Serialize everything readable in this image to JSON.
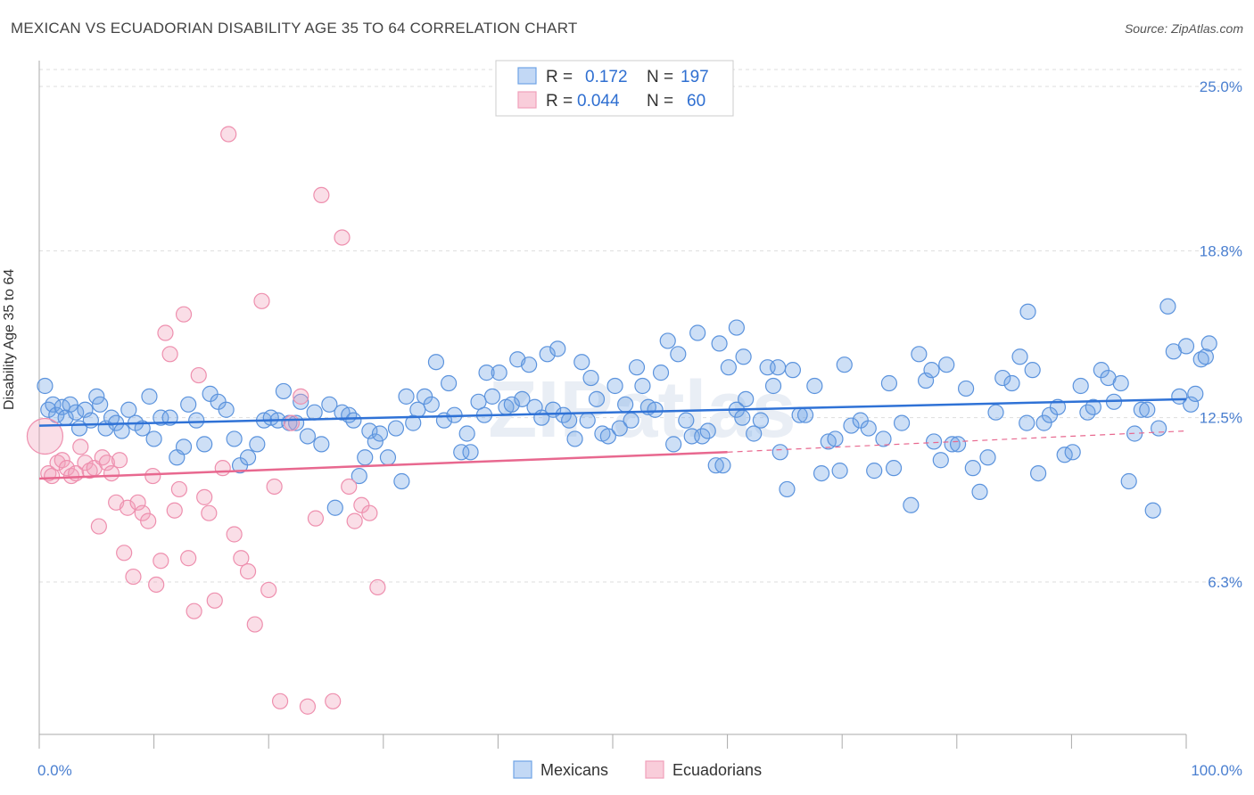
{
  "header": {
    "title": "MEXICAN VS ECUADORIAN DISABILITY AGE 35 TO 64 CORRELATION CHART",
    "source": "Source: ZipAtlas.com"
  },
  "watermark": "ZIPatlas",
  "colors": {
    "mexicans": "#6fa3e6",
    "ecuadorians": "#f1a0bb",
    "blue_line": "#2f72d6",
    "pink_line": "#e8688f",
    "axis_text": "#4a7fd0"
  },
  "legend": {
    "rows": [
      {
        "r_label": "R =",
        "r_value": "0.172",
        "n_label": "N =",
        "n_value": "197"
      },
      {
        "r_label": "R =",
        "r_value": "0.044",
        "n_label": "N =",
        "n_value": "60"
      }
    ]
  },
  "chart_data": {
    "type": "scatter",
    "title": "MEXICAN VS ECUADORIAN DISABILITY AGE 35 TO 64 CORRELATION CHART",
    "xlabel": "",
    "ylabel": "Disability Age 35 to 64",
    "x_tick_labels": [
      "0.0%",
      "100.0%"
    ],
    "y_tick_labels": [
      "6.3%",
      "12.5%",
      "18.8%",
      "25.0%"
    ],
    "y_ticks": [
      6.3,
      12.5,
      18.8,
      25.0
    ],
    "xlim": [
      0,
      100
    ],
    "ylim": [
      0,
      27
    ],
    "grid": "horizontal dashed",
    "legend_position": "top-center",
    "series": [
      {
        "name": "Mexicans",
        "trend": [
          [
            0,
            12.2
          ],
          [
            100,
            13.2
          ]
        ],
        "points": [
          [
            0.5,
            13.7
          ],
          [
            0.8,
            12.8
          ],
          [
            1.2,
            13.0
          ],
          [
            1.5,
            12.6
          ],
          [
            2.0,
            12.9
          ],
          [
            2.3,
            12.5
          ],
          [
            2.7,
            13.0
          ],
          [
            3.2,
            12.7
          ],
          [
            3.5,
            12.1
          ],
          [
            4.0,
            12.8
          ],
          [
            4.5,
            12.4
          ],
          [
            5.0,
            13.3
          ],
          [
            5.3,
            13.0
          ],
          [
            5.8,
            12.1
          ],
          [
            6.3,
            12.5
          ],
          [
            6.7,
            12.3
          ],
          [
            7.2,
            12.0
          ],
          [
            7.8,
            12.8
          ],
          [
            8.4,
            12.3
          ],
          [
            9.0,
            12.1
          ],
          [
            9.6,
            13.3
          ],
          [
            10.0,
            11.7
          ],
          [
            10.6,
            12.5
          ],
          [
            11.4,
            12.5
          ],
          [
            12.0,
            11.0
          ],
          [
            12.6,
            11.4
          ],
          [
            13.0,
            13.0
          ],
          [
            13.7,
            12.4
          ],
          [
            14.4,
            11.5
          ],
          [
            14.9,
            13.4
          ],
          [
            15.6,
            13.1
          ],
          [
            16.3,
            12.8
          ],
          [
            17.0,
            11.7
          ],
          [
            17.5,
            10.7
          ],
          [
            18.2,
            11.0
          ],
          [
            19.0,
            11.5
          ],
          [
            19.6,
            12.4
          ],
          [
            20.2,
            12.5
          ],
          [
            20.8,
            12.4
          ],
          [
            21.3,
            13.5
          ],
          [
            21.8,
            12.3
          ],
          [
            22.4,
            12.3
          ],
          [
            22.8,
            13.1
          ],
          [
            23.4,
            11.8
          ],
          [
            24.0,
            12.7
          ],
          [
            24.6,
            11.5
          ],
          [
            25.3,
            13.0
          ],
          [
            25.8,
            9.1
          ],
          [
            26.4,
            12.7
          ],
          [
            27.0,
            12.6
          ],
          [
            27.4,
            12.4
          ],
          [
            27.9,
            10.3
          ],
          [
            28.4,
            11.0
          ],
          [
            28.8,
            12.0
          ],
          [
            29.3,
            11.6
          ],
          [
            29.7,
            11.9
          ],
          [
            30.4,
            11.0
          ],
          [
            31.1,
            12.1
          ],
          [
            31.6,
            10.1
          ],
          [
            32.0,
            13.3
          ],
          [
            32.6,
            12.3
          ],
          [
            33.0,
            12.8
          ],
          [
            33.6,
            13.3
          ],
          [
            34.2,
            13.0
          ],
          [
            34.6,
            14.6
          ],
          [
            35.3,
            12.4
          ],
          [
            35.7,
            13.8
          ],
          [
            36.2,
            12.6
          ],
          [
            36.8,
            11.2
          ],
          [
            37.3,
            11.9
          ],
          [
            37.6,
            11.2
          ],
          [
            38.3,
            13.1
          ],
          [
            38.8,
            12.6
          ],
          [
            39.0,
            14.2
          ],
          [
            39.5,
            13.3
          ],
          [
            40.1,
            14.2
          ],
          [
            40.7,
            12.9
          ],
          [
            41.2,
            13.0
          ],
          [
            41.7,
            14.7
          ],
          [
            42.1,
            13.2
          ],
          [
            42.7,
            14.5
          ],
          [
            43.2,
            12.9
          ],
          [
            43.8,
            12.5
          ],
          [
            44.3,
            14.9
          ],
          [
            44.8,
            12.8
          ],
          [
            45.2,
            15.1
          ],
          [
            45.7,
            12.6
          ],
          [
            46.2,
            12.4
          ],
          [
            46.7,
            11.7
          ],
          [
            47.3,
            14.6
          ],
          [
            47.8,
            12.4
          ],
          [
            48.1,
            14.0
          ],
          [
            48.6,
            13.2
          ],
          [
            49.1,
            11.9
          ],
          [
            49.6,
            11.8
          ],
          [
            50.2,
            13.7
          ],
          [
            50.6,
            12.1
          ],
          [
            51.1,
            13.0
          ],
          [
            51.6,
            12.4
          ],
          [
            52.1,
            14.4
          ],
          [
            52.6,
            13.7
          ],
          [
            53.1,
            12.9
          ],
          [
            53.7,
            12.8
          ],
          [
            54.2,
            14.2
          ],
          [
            54.8,
            15.4
          ],
          [
            55.3,
            11.5
          ],
          [
            55.7,
            14.9
          ],
          [
            56.4,
            12.4
          ],
          [
            56.9,
            11.8
          ],
          [
            57.4,
            15.7
          ],
          [
            57.8,
            11.8
          ],
          [
            58.3,
            12.0
          ],
          [
            59.0,
            10.7
          ],
          [
            59.6,
            10.7
          ],
          [
            60.1,
            14.4
          ],
          [
            60.8,
            12.8
          ],
          [
            61.3,
            12.5
          ],
          [
            61.6,
            13.2
          ],
          [
            62.3,
            11.9
          ],
          [
            62.9,
            12.4
          ],
          [
            63.5,
            14.4
          ],
          [
            64.0,
            13.7
          ],
          [
            64.6,
            11.2
          ],
          [
            65.2,
            9.8
          ],
          [
            65.7,
            14.3
          ],
          [
            66.3,
            12.6
          ],
          [
            66.8,
            12.6
          ],
          [
            67.6,
            13.7
          ],
          [
            68.2,
            10.4
          ],
          [
            68.8,
            11.6
          ],
          [
            69.4,
            11.7
          ],
          [
            69.8,
            10.5
          ],
          [
            70.2,
            14.5
          ],
          [
            70.8,
            12.2
          ],
          [
            71.6,
            12.4
          ],
          [
            72.3,
            12.1
          ],
          [
            72.8,
            10.5
          ],
          [
            73.6,
            11.7
          ],
          [
            74.1,
            13.8
          ],
          [
            74.5,
            10.6
          ],
          [
            75.2,
            12.3
          ],
          [
            76.0,
            9.2
          ],
          [
            76.7,
            14.9
          ],
          [
            77.3,
            13.9
          ],
          [
            77.8,
            14.3
          ],
          [
            78.0,
            11.6
          ],
          [
            78.6,
            10.9
          ],
          [
            79.1,
            14.5
          ],
          [
            79.6,
            11.5
          ],
          [
            80.1,
            11.5
          ],
          [
            80.8,
            13.6
          ],
          [
            81.4,
            10.6
          ],
          [
            82.0,
            9.7
          ],
          [
            82.7,
            11.0
          ],
          [
            83.4,
            12.7
          ],
          [
            84.0,
            14.0
          ],
          [
            84.8,
            13.8
          ],
          [
            85.5,
            14.8
          ],
          [
            86.1,
            12.3
          ],
          [
            86.6,
            14.3
          ],
          [
            87.1,
            10.4
          ],
          [
            87.6,
            12.3
          ],
          [
            88.1,
            12.6
          ],
          [
            88.8,
            12.9
          ],
          [
            89.4,
            11.1
          ],
          [
            90.1,
            11.2
          ],
          [
            90.8,
            13.7
          ],
          [
            91.4,
            12.7
          ],
          [
            91.9,
            12.9
          ],
          [
            92.6,
            14.3
          ],
          [
            93.2,
            14.0
          ],
          [
            93.7,
            13.1
          ],
          [
            94.3,
            13.8
          ],
          [
            95.0,
            10.1
          ],
          [
            95.5,
            11.9
          ],
          [
            96.1,
            12.8
          ],
          [
            96.6,
            12.8
          ],
          [
            97.1,
            9.0
          ],
          [
            97.6,
            12.1
          ],
          [
            98.4,
            16.7
          ],
          [
            98.9,
            15.0
          ],
          [
            99.4,
            13.3
          ],
          [
            100.0,
            15.2
          ],
          [
            100.4,
            13.0
          ],
          [
            100.8,
            13.4
          ],
          [
            101.3,
            14.7
          ],
          [
            101.7,
            14.8
          ],
          [
            102.0,
            15.3
          ],
          [
            59.3,
            15.3
          ],
          [
            60.8,
            15.9
          ],
          [
            61.4,
            14.8
          ],
          [
            64.4,
            14.4
          ],
          [
            86.2,
            16.5
          ]
        ]
      },
      {
        "name": "Ecuadorians",
        "trend": [
          [
            0,
            10.2
          ],
          [
            60,
            11.2
          ],
          [
            100,
            12.0
          ]
        ],
        "points": [
          [
            0.5,
            11.8
          ],
          [
            0.8,
            10.4
          ],
          [
            1.1,
            10.3
          ],
          [
            1.6,
            10.8
          ],
          [
            2.0,
            10.9
          ],
          [
            2.4,
            10.6
          ],
          [
            2.8,
            10.3
          ],
          [
            3.2,
            10.4
          ],
          [
            3.6,
            11.4
          ],
          [
            4.0,
            10.8
          ],
          [
            4.4,
            10.5
          ],
          [
            4.8,
            10.6
          ],
          [
            5.2,
            8.4
          ],
          [
            5.5,
            11.0
          ],
          [
            5.9,
            10.8
          ],
          [
            6.3,
            10.4
          ],
          [
            6.7,
            9.3
          ],
          [
            7.0,
            10.9
          ],
          [
            7.4,
            7.4
          ],
          [
            7.7,
            9.1
          ],
          [
            8.2,
            6.5
          ],
          [
            8.6,
            9.3
          ],
          [
            9.0,
            8.9
          ],
          [
            9.5,
            8.6
          ],
          [
            9.9,
            10.3
          ],
          [
            10.2,
            6.2
          ],
          [
            10.6,
            7.1
          ],
          [
            11.0,
            15.7
          ],
          [
            11.4,
            14.9
          ],
          [
            11.8,
            9.0
          ],
          [
            12.2,
            9.8
          ],
          [
            12.6,
            16.4
          ],
          [
            13.0,
            7.2
          ],
          [
            13.5,
            5.2
          ],
          [
            13.9,
            14.1
          ],
          [
            14.4,
            9.5
          ],
          [
            14.8,
            8.9
          ],
          [
            15.3,
            5.6
          ],
          [
            16.0,
            10.6
          ],
          [
            16.5,
            23.2
          ],
          [
            17.0,
            8.1
          ],
          [
            17.6,
            7.2
          ],
          [
            18.2,
            6.7
          ],
          [
            18.8,
            4.7
          ],
          [
            19.4,
            16.9
          ],
          [
            20.0,
            6.0
          ],
          [
            20.5,
            9.9
          ],
          [
            21.0,
            1.8
          ],
          [
            22.0,
            12.3
          ],
          [
            22.8,
            13.3
          ],
          [
            23.4,
            1.6
          ],
          [
            24.1,
            8.7
          ],
          [
            24.6,
            20.9
          ],
          [
            25.6,
            1.8
          ],
          [
            26.4,
            19.3
          ],
          [
            27.0,
            9.9
          ],
          [
            27.5,
            8.6
          ],
          [
            28.1,
            9.2
          ],
          [
            28.8,
            8.9
          ],
          [
            29.5,
            6.1
          ]
        ]
      }
    ]
  },
  "bottom_legend": {
    "items": [
      {
        "label": "Mexicans"
      },
      {
        "label": "Ecuadorians"
      }
    ]
  }
}
